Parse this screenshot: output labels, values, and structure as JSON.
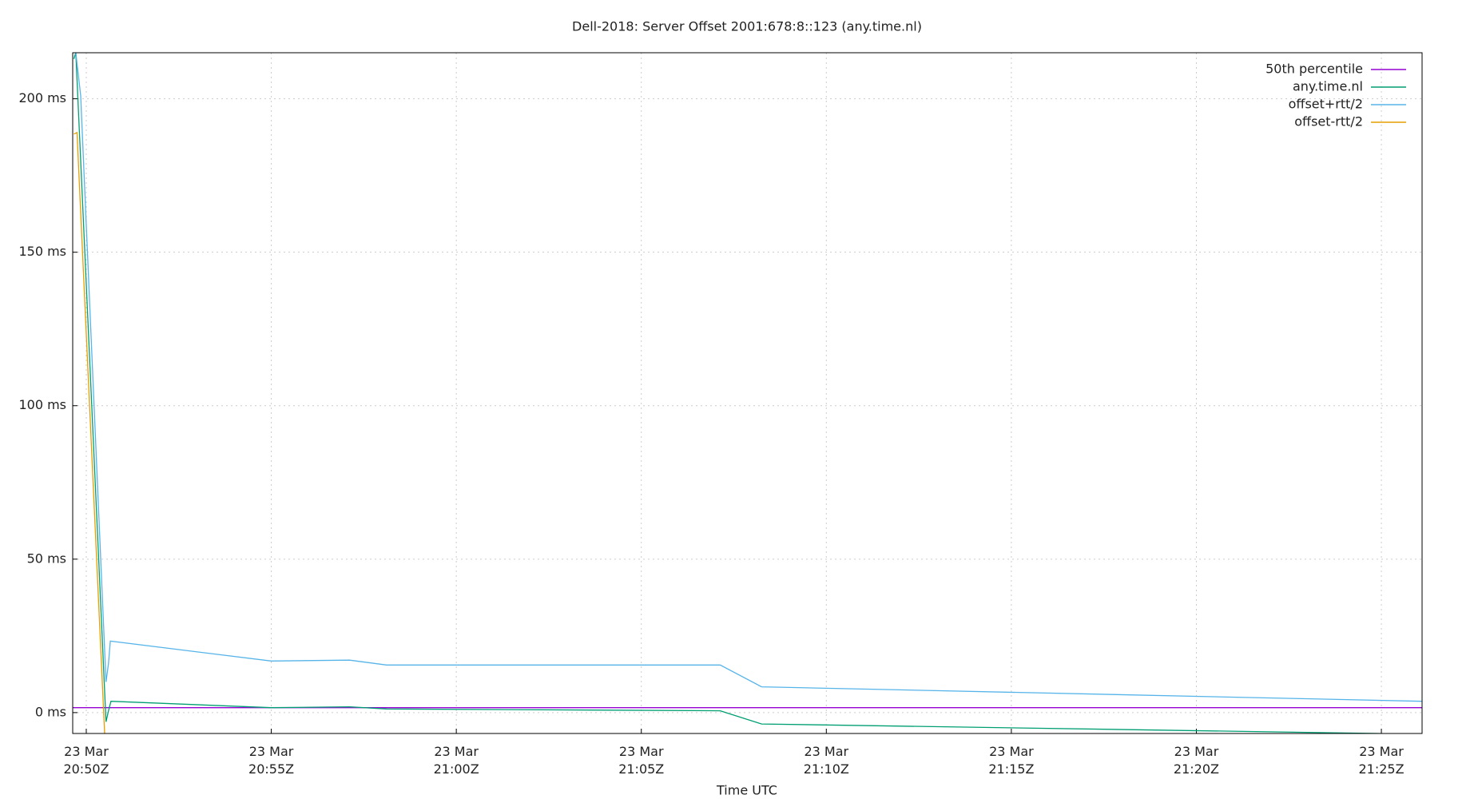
{
  "chart_data": {
    "type": "line",
    "title": "Dell-2018: Server Offset 2001:678:8::123 (any.time.nl)",
    "x_label": "Time UTC",
    "xlim": [
      "20:49:38",
      "21:26:06"
    ],
    "xticks": [
      {
        "value": "20:50:00",
        "label": "23 Mar 20:50Z"
      },
      {
        "value": "20:55:00",
        "label": "23 Mar 20:55Z"
      },
      {
        "value": "21:00:00",
        "label": "23 Mar 21:00Z"
      },
      {
        "value": "21:05:00",
        "label": "23 Mar 21:05Z"
      },
      {
        "value": "21:10:00",
        "label": "23 Mar 21:10Z"
      },
      {
        "value": "21:15:00",
        "label": "23 Mar 21:15Z"
      },
      {
        "value": "21:20:00",
        "label": "23 Mar 21:20Z"
      },
      {
        "value": "21:25:00",
        "label": "23 Mar 21:25Z"
      }
    ],
    "ylim": [
      -6.8,
      215
    ],
    "yticks": [
      {
        "value": 0,
        "label": "0 ms"
      },
      {
        "value": 50,
        "label": "50 ms"
      },
      {
        "value": 100,
        "label": "100 ms"
      },
      {
        "value": 150,
        "label": "150 ms"
      },
      {
        "value": 200,
        "label": "200 ms"
      }
    ],
    "grid": true,
    "legend": "upper right",
    "series": [
      {
        "name": "50th percentile",
        "color": "#9400d3",
        "x": [
          "20:49:38",
          "21:26:06"
        ],
        "values": [
          1.6,
          1.6
        ]
      },
      {
        "name": "any.time.nl",
        "color": "#009e73",
        "x": [
          "20:49:40",
          "20:49:43",
          "20:50:32",
          "20:50:36",
          "20:50:40",
          "20:55:00",
          "20:57:07",
          "20:58:07",
          "21:07:08",
          "21:08:15",
          "21:24:55",
          "21:26:06"
        ],
        "values": [
          213,
          215,
          -3,
          0.6,
          3.7,
          1.6,
          1.9,
          1.2,
          0.6,
          -3.7,
          -6.8,
          -7.2
        ]
      },
      {
        "name": "offset+rtt/2",
        "color": "#56b4e9",
        "x": [
          "20:49:43",
          "20:49:51",
          "20:50:32",
          "20:50:36",
          "20:50:39",
          "20:55:00",
          "20:57:07",
          "20:58:07",
          "21:07:08",
          "21:08:15",
          "21:26:06"
        ],
        "values": [
          215,
          201,
          10,
          16,
          23.3,
          16.8,
          17.1,
          15.5,
          15.5,
          8.4,
          3.7
        ]
      },
      {
        "name": "offset-rtt/2",
        "color": "#e69f00",
        "x": [
          "20:49:40",
          "20:49:45",
          "20:50:31"
        ],
        "values": [
          188.5,
          189,
          -12
        ]
      }
    ]
  }
}
